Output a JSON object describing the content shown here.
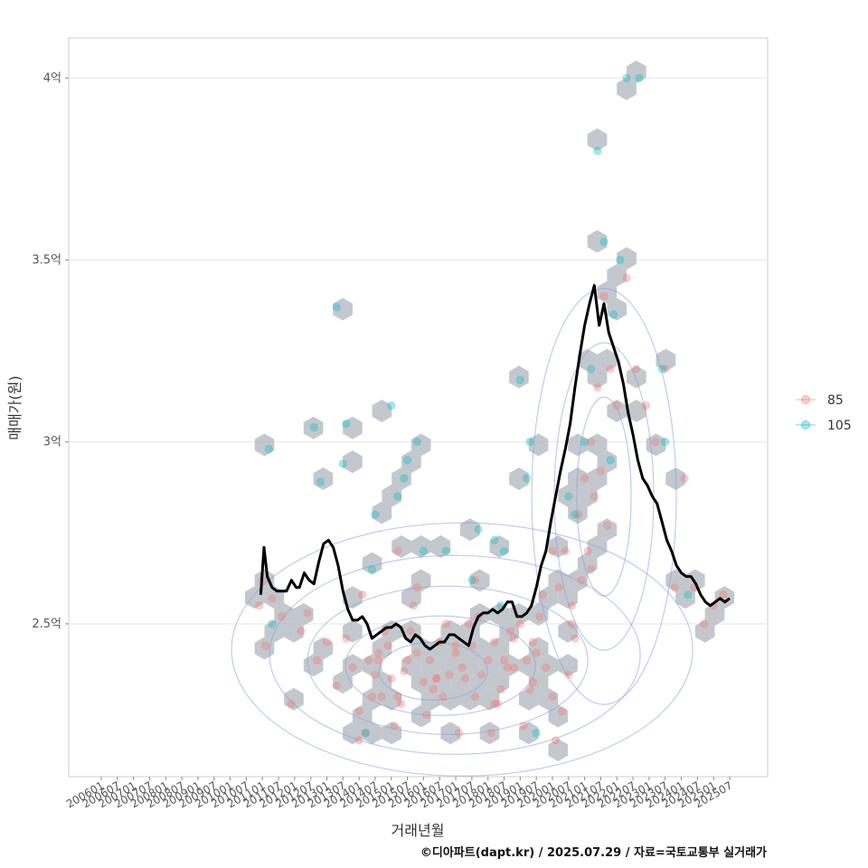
{
  "chart_data": {
    "type": "scatter",
    "title": "",
    "xlabel": "거래년월",
    "ylabel": "매매가(원)",
    "ylim": [
      2.08,
      4.11
    ],
    "y_ticks": [
      {
        "value": 2.5,
        "label": "2.5억"
      },
      {
        "value": 3.0,
        "label": "3억"
      },
      {
        "value": 3.5,
        "label": "3.5억"
      },
      {
        "value": 4.0,
        "label": "4억"
      }
    ],
    "x_ticks": [
      "200601",
      "200607",
      "200701",
      "200707",
      "200801",
      "200807",
      "200901",
      "200907",
      "201001",
      "201007",
      "201101",
      "201107",
      "201201",
      "201207",
      "201301",
      "201307",
      "201401",
      "201407",
      "201501",
      "201507",
      "201601",
      "201607",
      "201701",
      "201707",
      "201801",
      "201807",
      "201901",
      "201907",
      "202001",
      "202007",
      "202101",
      "202107",
      "202201",
      "202207",
      "202301",
      "202307",
      "202401",
      "202407",
      "202501",
      "202507"
    ],
    "legend": {
      "position": "right",
      "title": "",
      "entries": [
        {
          "label": "85",
          "color": "#F8766D"
        },
        {
          "label": "105",
          "color": "#00BFC4"
        }
      ]
    },
    "series": [
      {
        "name": "85",
        "color": "#F8766D",
        "x": [
          2010.9,
          2011.0,
          2011.1,
          2011.3,
          2011.6,
          2011.9,
          2012.2,
          2012.4,
          2012.7,
          2013.0,
          2013.3,
          2013.6,
          2013.8,
          2014.0,
          2014.1,
          2014.3,
          2014.5,
          2014.7,
          2014.9,
          2015.0,
          2015.2,
          2015.4,
          2015.6,
          2015.8,
          2016.0,
          2016.2,
          2016.4,
          2016.6,
          2016.8,
          2017.0,
          2017.2,
          2017.4,
          2017.6,
          2017.8,
          2018.0,
          2018.2,
          2018.4,
          2018.6,
          2018.8,
          2019.0,
          2019.2,
          2019.4,
          2019.6,
          2019.8,
          2020.0,
          2020.2,
          2020.4,
          2020.6,
          2020.8,
          2021.0,
          2021.2,
          2021.4,
          2021.6,
          2021.8,
          2022.0,
          2022.3,
          2022.6,
          2022.9,
          2023.2,
          2023.5,
          2023.8,
          2024.1,
          2024.4,
          2024.7,
          2025.0,
          2025.3,
          2014.2,
          2014.4,
          2014.6,
          2014.8,
          2015.1,
          2015.3,
          2015.5,
          2015.7,
          2016.1,
          2016.3,
          2016.5,
          2016.7,
          2017.1,
          2017.3,
          2017.5,
          2017.7,
          2018.1,
          2018.3,
          2018.5,
          2018.7,
          2019.1,
          2019.3,
          2019.5,
          2019.7,
          2020.1,
          2020.3,
          2020.5,
          2020.7,
          2020.9,
          2021.1,
          2021.3,
          2021.5,
          2021.7,
          2014.0,
          2014.6,
          2015.2,
          2015.8,
          2016.4,
          2017.0,
          2017.6,
          2018.2,
          2018.8,
          2019.4,
          2020.0,
          2020.6,
          2021.2
        ],
        "y": [
          2.55,
          2.62,
          2.44,
          2.57,
          2.52,
          2.28,
          2.48,
          2.53,
          2.4,
          2.45,
          2.33,
          2.46,
          2.38,
          2.26,
          2.58,
          2.4,
          2.36,
          2.3,
          2.44,
          2.35,
          2.3,
          2.37,
          2.48,
          2.42,
          2.34,
          2.4,
          2.35,
          2.3,
          2.36,
          2.42,
          2.38,
          2.5,
          2.3,
          2.36,
          2.4,
          2.45,
          2.32,
          2.38,
          2.46,
          2.5,
          2.4,
          2.34,
          2.52,
          2.38,
          2.3,
          2.6,
          2.7,
          2.5,
          2.8,
          2.9,
          3.0,
          3.15,
          3.4,
          3.2,
          3.1,
          3.45,
          3.2,
          3.1,
          3.0,
          3.2,
          2.6,
          2.9,
          2.6,
          2.5,
          2.55,
          2.58,
          2.2,
          2.3,
          2.42,
          2.48,
          2.22,
          2.28,
          2.4,
          2.55,
          2.25,
          2.32,
          2.45,
          2.5,
          2.2,
          2.35,
          2.44,
          2.52,
          2.2,
          2.28,
          2.4,
          2.48,
          2.22,
          2.32,
          2.42,
          2.58,
          2.18,
          2.26,
          2.36,
          2.46,
          2.62,
          2.7,
          2.85,
          2.92,
          2.77,
          2.18,
          2.4,
          2.7,
          2.6,
          2.35,
          2.44,
          2.62,
          2.28,
          2.38,
          2.45,
          2.7,
          2.55,
          2.65
        ]
      },
      {
        "name": "105",
        "color": "#00BFC4",
        "x": [
          2011.2,
          2011.3,
          2012.6,
          2012.8,
          2013.3,
          2013.5,
          2013.6,
          2014.2,
          2014.4,
          2014.5,
          2015.0,
          2015.2,
          2015.4,
          2015.5,
          2015.8,
          2016.0,
          2016.7,
          2017.5,
          2017.7,
          2018.2,
          2018.4,
          2018.5,
          2019.0,
          2019.2,
          2019.3,
          2019.5,
          2020.5,
          2020.7,
          2021.0,
          2021.2,
          2021.4,
          2021.6,
          2021.8,
          2021.9,
          2022.1,
          2022.3,
          2022.7,
          2023.4,
          2023.5,
          2024.2
        ],
        "y": [
          2.98,
          2.5,
          3.04,
          2.89,
          3.37,
          2.94,
          3.05,
          2.2,
          2.65,
          2.8,
          3.1,
          2.85,
          2.9,
          2.95,
          3.0,
          2.7,
          2.7,
          2.62,
          2.76,
          2.73,
          2.55,
          2.7,
          3.17,
          2.9,
          3.0,
          2.2,
          2.85,
          2.8,
          3.0,
          3.2,
          3.8,
          3.55,
          2.95,
          3.35,
          3.5,
          4.0,
          4.0,
          3.2,
          3.0,
          2.58
        ]
      }
    ],
    "trend": {
      "name": "trend",
      "color": "#000000",
      "x": [
        2010.95,
        2011.05,
        2011.15,
        2011.3,
        2011.45,
        2011.6,
        2011.75,
        2011.9,
        2012.05,
        2012.15,
        2012.3,
        2012.45,
        2012.6,
        2012.75,
        2012.9,
        2013.05,
        2013.2,
        2013.35,
        2013.5,
        2013.65,
        2013.8,
        2013.95,
        2014.1,
        2014.25,
        2014.4,
        2014.55,
        2014.7,
        2014.85,
        2015.0,
        2015.15,
        2015.3,
        2015.45,
        2015.6,
        2015.75,
        2015.9,
        2016.05,
        2016.2,
        2016.35,
        2016.5,
        2016.65,
        2016.8,
        2016.95,
        2017.1,
        2017.25,
        2017.4,
        2017.55,
        2017.7,
        2017.85,
        2018.0,
        2018.15,
        2018.3,
        2018.45,
        2018.6,
        2018.75,
        2018.9,
        2019.05,
        2019.2,
        2019.35,
        2019.5,
        2019.65,
        2019.8,
        2019.95,
        2020.1,
        2020.25,
        2020.4,
        2020.55,
        2020.7,
        2020.85,
        2021.0,
        2021.15,
        2021.3,
        2021.45,
        2021.6,
        2021.75,
        2021.9,
        2022.05,
        2022.2,
        2022.35,
        2022.5,
        2022.65,
        2022.8,
        2022.95,
        2023.1,
        2023.25,
        2023.4,
        2023.55,
        2023.7,
        2023.85,
        2024.0,
        2024.15,
        2024.3,
        2024.45,
        2024.6,
        2024.75,
        2024.9,
        2025.05,
        2025.2,
        2025.35,
        2025.5
      ],
      "y": [
        2.58,
        2.71,
        2.63,
        2.6,
        2.59,
        2.59,
        2.59,
        2.62,
        2.6,
        2.6,
        2.64,
        2.62,
        2.61,
        2.67,
        2.72,
        2.73,
        2.71,
        2.66,
        2.59,
        2.54,
        2.51,
        2.51,
        2.52,
        2.5,
        2.46,
        2.47,
        2.48,
        2.49,
        2.49,
        2.5,
        2.49,
        2.46,
        2.45,
        2.47,
        2.46,
        2.44,
        2.43,
        2.44,
        2.45,
        2.45,
        2.47,
        2.47,
        2.46,
        2.45,
        2.44,
        2.49,
        2.52,
        2.53,
        2.53,
        2.54,
        2.53,
        2.54,
        2.56,
        2.56,
        2.52,
        2.52,
        2.53,
        2.55,
        2.6,
        2.66,
        2.7,
        2.78,
        2.85,
        2.92,
        2.98,
        3.05,
        3.15,
        3.24,
        3.32,
        3.38,
        3.43,
        3.32,
        3.38,
        3.3,
        3.26,
        3.22,
        3.16,
        3.08,
        3.02,
        2.95,
        2.9,
        2.88,
        2.85,
        2.83,
        2.78,
        2.73,
        2.7,
        2.66,
        2.64,
        2.63,
        2.63,
        2.61,
        2.58,
        2.56,
        2.55,
        2.56,
        2.57,
        2.56,
        2.57
      ]
    }
  },
  "caption": "©디아파트(dapt.kr) / 2025.07.29 / 자료=국토교통부 실거래가"
}
